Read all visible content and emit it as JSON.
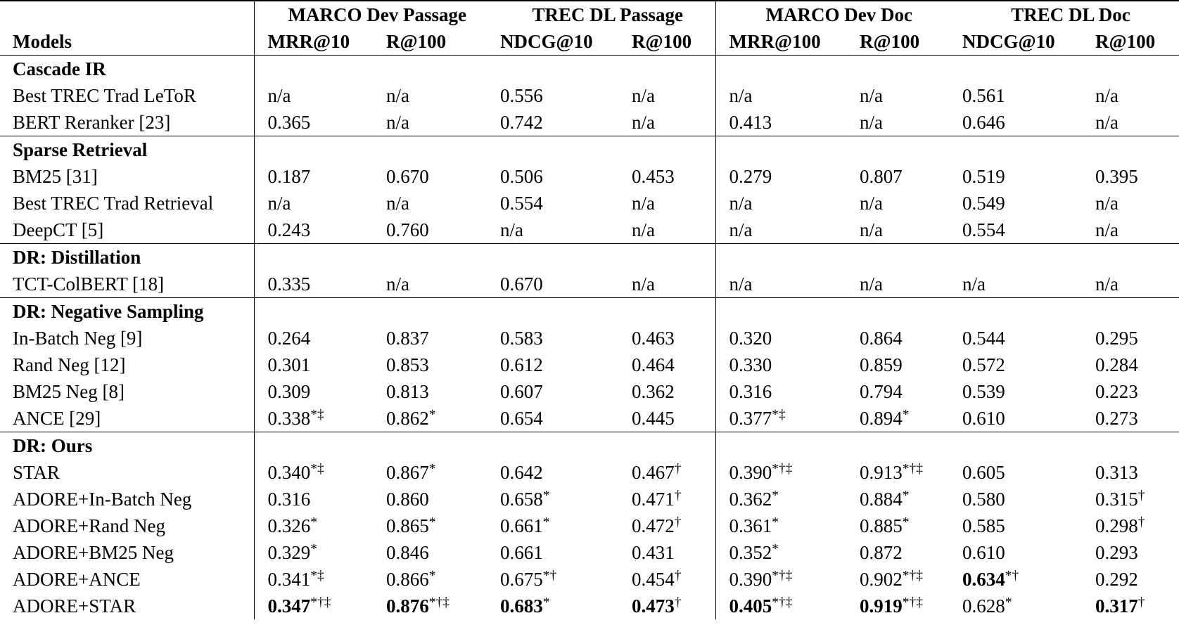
{
  "table": {
    "groups": [
      "MARCO Dev Passage",
      "TREC DL Passage",
      "MARCO Dev Doc",
      "TREC DL Doc"
    ],
    "columns": [
      "Models",
      "MRR@10",
      "R@100",
      "NDCG@10",
      "R@100",
      "MRR@100",
      "R@100",
      "NDCG@10",
      "R@100"
    ],
    "sections": [
      {
        "title": "Cascade IR",
        "rows": [
          [
            "Best TREC Trad LeToR",
            "n/a",
            "n/a",
            "0.556",
            "n/a",
            "n/a",
            "n/a",
            "0.561",
            "n/a"
          ],
          [
            "BERT Reranker [23]",
            "0.365",
            "n/a",
            "0.742",
            "n/a",
            "0.413",
            "n/a",
            "0.646",
            "n/a"
          ]
        ]
      },
      {
        "title": "Sparse Retrieval",
        "rows": [
          [
            "BM25 [31]",
            "0.187",
            "0.670",
            "0.506",
            "0.453",
            "0.279",
            "0.807",
            "0.519",
            "0.395"
          ],
          [
            "Best TREC Trad Retrieval",
            "n/a",
            "n/a",
            "0.554",
            "n/a",
            "n/a",
            "n/a",
            "0.549",
            "n/a"
          ],
          [
            "DeepCT [5]",
            "0.243",
            "0.760",
            "n/a",
            "n/a",
            "n/a",
            "n/a",
            "0.554",
            "n/a"
          ]
        ]
      },
      {
        "title": "DR: Distillation",
        "rows": [
          [
            "TCT-ColBERT [18]",
            "0.335",
            "n/a",
            "0.670",
            "n/a",
            "n/a",
            "n/a",
            "n/a",
            "n/a"
          ]
        ]
      },
      {
        "title": "DR: Negative Sampling",
        "rows": [
          [
            "In-Batch Neg [9]",
            "0.264",
            "0.837",
            "0.583",
            "0.463",
            "0.320",
            "0.864",
            "0.544",
            "0.295"
          ],
          [
            "Rand Neg [12]",
            "0.301",
            "0.853",
            "0.612",
            "0.464",
            "0.330",
            "0.859",
            "0.572",
            "0.284"
          ],
          [
            "BM25 Neg [8]",
            "0.309",
            "0.813",
            "0.607",
            "0.362",
            "0.316",
            "0.794",
            "0.539",
            "0.223"
          ],
          [
            "ANCE [29]",
            {
              "value": "0.338",
              "marks": "*‡"
            },
            {
              "value": "0.862",
              "marks": "*"
            },
            "0.654",
            "0.445",
            {
              "value": "0.377",
              "marks": "*‡"
            },
            {
              "value": "0.894",
              "marks": "*"
            },
            "0.610",
            "0.273"
          ]
        ]
      },
      {
        "title": "DR: Ours",
        "rows": [
          [
            "STAR",
            {
              "value": "0.340",
              "marks": "*‡"
            },
            {
              "value": "0.867",
              "marks": "*"
            },
            "0.642",
            {
              "value": "0.467",
              "marks": "†"
            },
            {
              "value": "0.390",
              "marks": "*†‡"
            },
            {
              "value": "0.913",
              "marks": "*†‡"
            },
            "0.605",
            "0.313"
          ],
          [
            "ADORE+In-Batch Neg",
            "0.316",
            "0.860",
            {
              "value": "0.658",
              "marks": "*"
            },
            {
              "value": "0.471",
              "marks": "†"
            },
            {
              "value": "0.362",
              "marks": "*"
            },
            {
              "value": "0.884",
              "marks": "*"
            },
            "0.580",
            {
              "value": "0.315",
              "marks": "†"
            }
          ],
          [
            "ADORE+Rand Neg",
            {
              "value": "0.326",
              "marks": "*"
            },
            {
              "value": "0.865",
              "marks": "*"
            },
            {
              "value": "0.661",
              "marks": "*"
            },
            {
              "value": "0.472",
              "marks": "†"
            },
            {
              "value": "0.361",
              "marks": "*"
            },
            {
              "value": "0.885",
              "marks": "*"
            },
            "0.585",
            {
              "value": "0.298",
              "marks": "†"
            }
          ],
          [
            "ADORE+BM25 Neg",
            {
              "value": "0.329",
              "marks": "*"
            },
            "0.846",
            "0.661",
            "0.431",
            {
              "value": "0.352",
              "marks": "*"
            },
            "0.872",
            "0.610",
            "0.293"
          ],
          [
            "ADORE+ANCE",
            {
              "value": "0.341",
              "marks": "*‡"
            },
            {
              "value": "0.866",
              "marks": "*"
            },
            {
              "value": "0.675",
              "marks": "*†"
            },
            {
              "value": "0.454",
              "marks": "†"
            },
            {
              "value": "0.390",
              "marks": "*†‡"
            },
            {
              "value": "0.902",
              "marks": "*†‡"
            },
            {
              "value": "0.634",
              "marks": "*†",
              "bold": true
            },
            "0.292"
          ],
          [
            "ADORE+STAR",
            {
              "value": "0.347",
              "marks": "*†‡",
              "bold": true
            },
            {
              "value": "0.876",
              "marks": "*†‡",
              "bold": true
            },
            {
              "value": "0.683",
              "marks": "*",
              "bold": true
            },
            {
              "value": "0.473",
              "marks": "†",
              "bold": true
            },
            {
              "value": "0.405",
              "marks": "*†‡",
              "bold": true
            },
            {
              "value": "0.919",
              "marks": "*†‡",
              "bold": true
            },
            {
              "value": "0.628",
              "marks": "*"
            },
            {
              "value": "0.317",
              "marks": "†",
              "bold": true
            }
          ]
        ]
      }
    ]
  }
}
